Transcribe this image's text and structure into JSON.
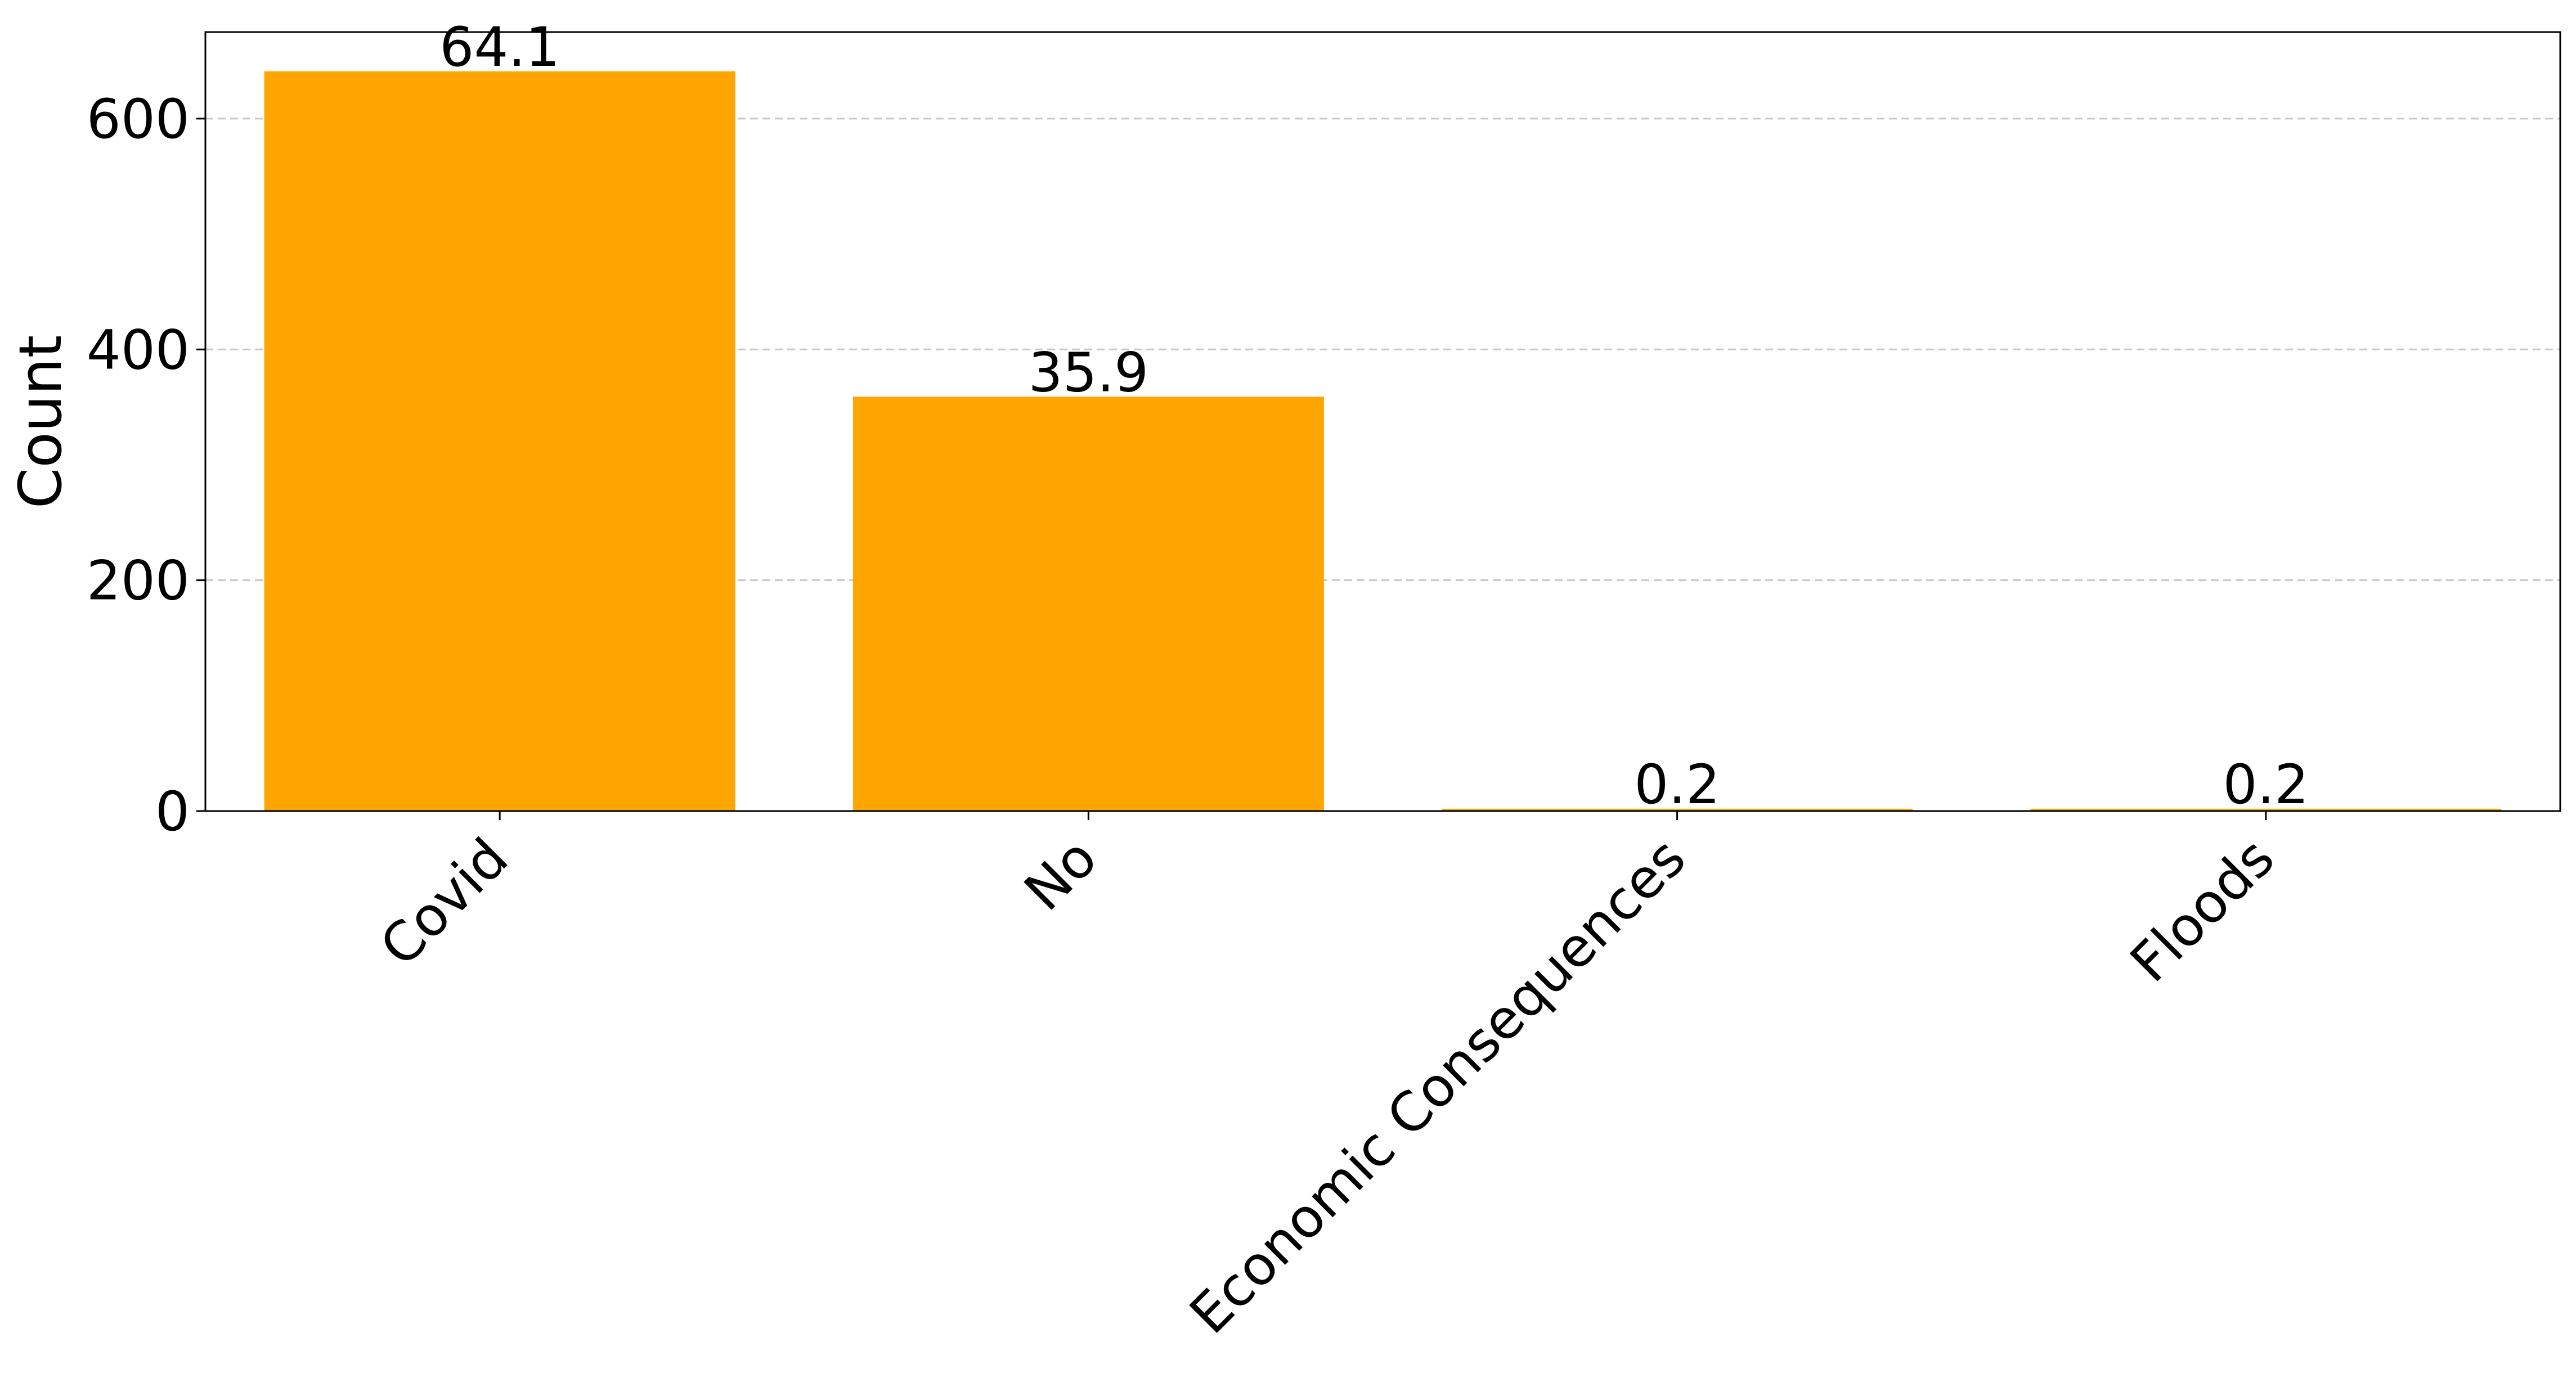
{
  "chart_data": {
    "type": "bar",
    "categories": [
      "Covid",
      "No",
      "Economic Consequences",
      "Floods"
    ],
    "values": [
      641,
      359,
      2,
      2
    ],
    "data_labels": [
      "64.1",
      "35.9",
      "0.2",
      "0.2"
    ],
    "title": "",
    "xlabel": "",
    "ylabel": "Count",
    "ylim": [
      0,
      675
    ],
    "yticks": [
      0,
      200,
      400,
      600
    ],
    "grid": "y-dashed",
    "bar_color": "#FFA500",
    "grid_color": "#c8c8c8"
  }
}
